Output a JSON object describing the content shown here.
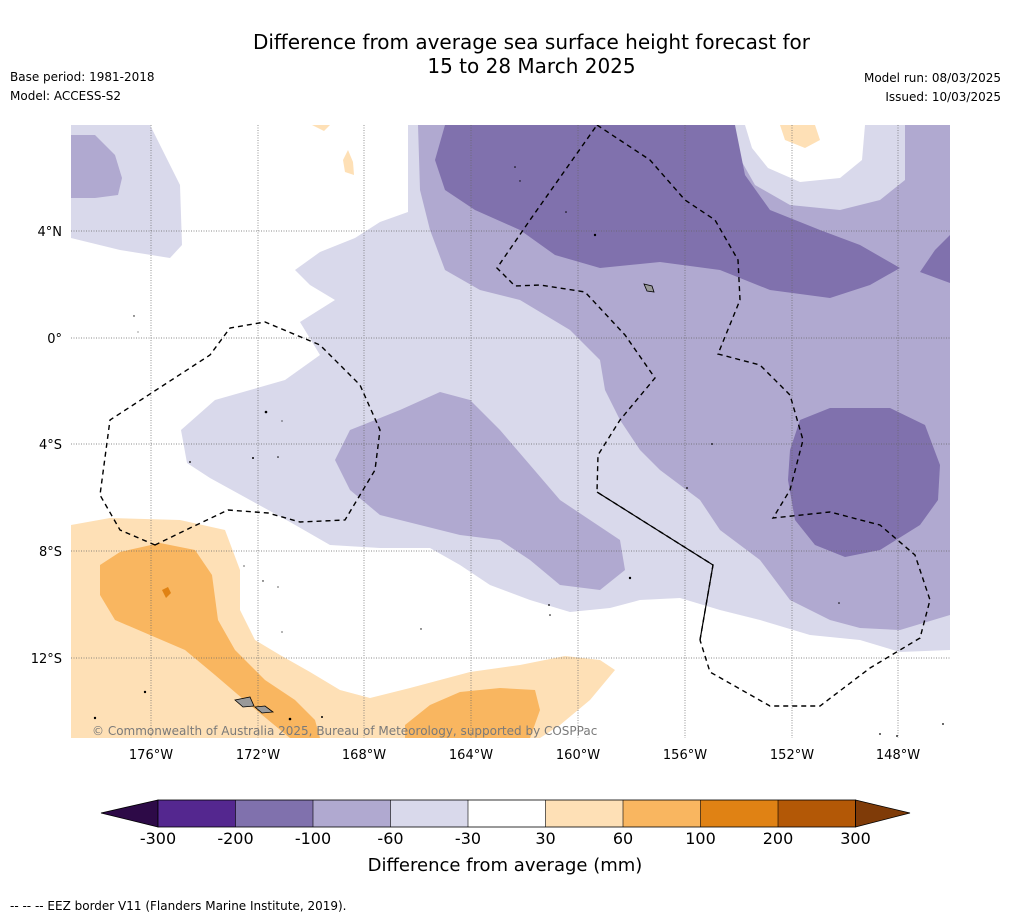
{
  "header": {
    "title_line1": "Difference from average sea surface height forecast for",
    "title_line2": "15 to 28 March 2025",
    "base_period": "Base period: 1981-2018",
    "model": "Model: ACCESS-S2",
    "model_run": "Model run: 08/03/2025",
    "issued": "Issued: 10/03/2025"
  },
  "map": {
    "lat_labels": [
      "4°N",
      "0°",
      "4°S",
      "8°S",
      "12°S"
    ],
    "lon_labels": [
      "176°W",
      "172°W",
      "168°W",
      "164°W",
      "160°W",
      "156°W",
      "152°W",
      "148°W"
    ],
    "copyright": "© Commonwealth of Australia 2025, Bureau of Meteorology, supported by COSPPac"
  },
  "colorbar": {
    "ticks": [
      "-300",
      "-200",
      "-100",
      "-60",
      "-30",
      "30",
      "60",
      "100",
      "200",
      "300"
    ],
    "colors": [
      "#2d0a47",
      "#54278f",
      "#8071ad",
      "#b0a9d0",
      "#d9d9eb",
      "#ffffff",
      "#fee0b6",
      "#f9b660",
      "#e08214",
      "#b35806",
      "#7f3b08"
    ],
    "label": "Difference from average (mm)"
  },
  "legend": {
    "eez_note": "-- -- -- EEZ border V11 (Flanders Marine Institute, 2019)."
  }
}
